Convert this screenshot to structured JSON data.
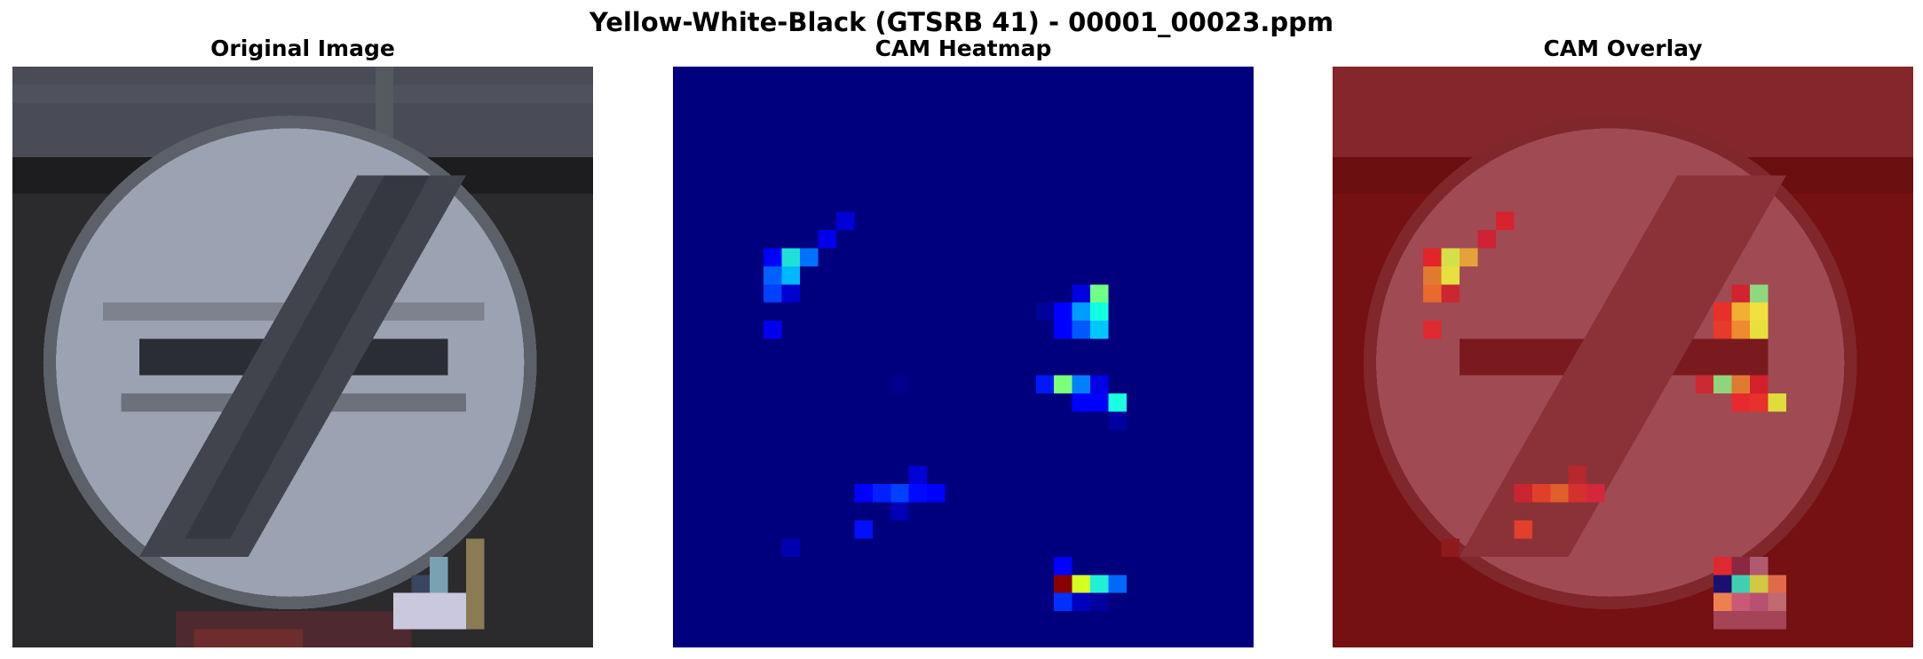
{
  "figure": {
    "title": "Yellow-White-Black (GTSRB 41) - 00001_00023.ppm"
  },
  "panels": [
    {
      "title": "Original Image",
      "content": "traffic-sign-photo"
    },
    {
      "title": "CAM Heatmap",
      "content": "cam-heatmap",
      "colormap": "jet"
    },
    {
      "title": "CAM Overlay",
      "content": "cam-overlay",
      "colormap": "jet"
    }
  ],
  "colors": {
    "heatmap_background": "#00007f",
    "overlay_tint": "#7a0f12",
    "photo_background": "#2b2a2c",
    "sign_fill": "#9ba2b2",
    "sign_bars": "#41444c"
  }
}
